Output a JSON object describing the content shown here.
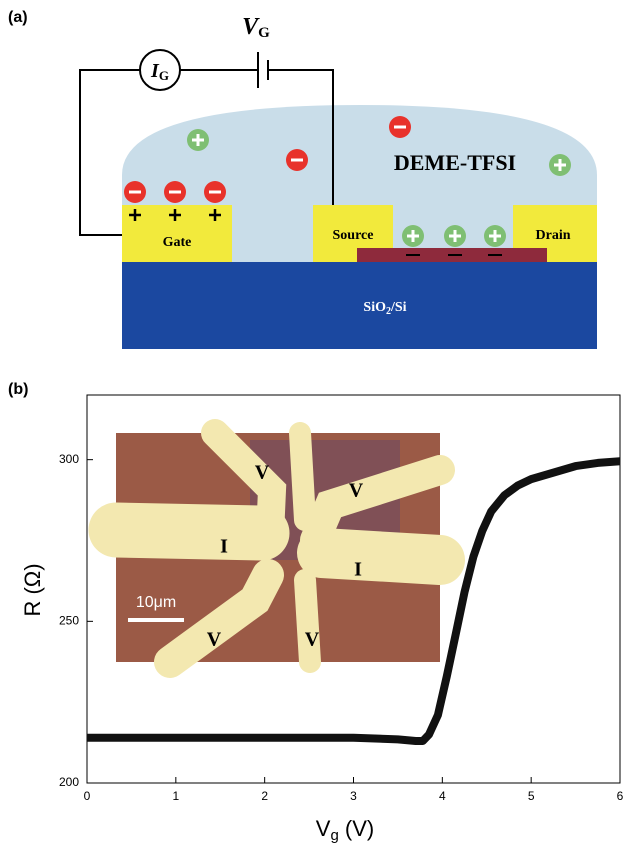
{
  "panel_labels": [
    "(a)",
    "(b)"
  ],
  "diagram": {
    "gate_voltage": {
      "symbol": "V",
      "sub": "G"
    },
    "gate_current": {
      "symbol": "I",
      "sub": "G"
    },
    "electrolyte": "DEME-TFSI",
    "gate": "Gate",
    "source": "Source",
    "drain": "Drain",
    "substrate": {
      "main": "SiO",
      "sub": "2",
      "rest": "/Si"
    }
  },
  "inset": {
    "labels": [
      "V",
      "V",
      "I",
      "I",
      "V",
      "V"
    ],
    "scale_bar": "10μm"
  },
  "chart_data": {
    "type": "line",
    "x_label": {
      "main": "V",
      "sub": "g",
      "rest": " (V)"
    },
    "y_label": "R (Ω)",
    "x": [
      0,
      0.5,
      1,
      1.5,
      2,
      2.5,
      3,
      3.5,
      3.7,
      3.78,
      3.85,
      3.95,
      4.05,
      4.15,
      4.25,
      4.35,
      4.45,
      4.55,
      4.7,
      4.85,
      5.0,
      5.25,
      5.5,
      5.75,
      6.0
    ],
    "series": [
      {
        "color": "#111111",
        "values": [
          214,
          214,
          214,
          214,
          214,
          214,
          214,
          213.5,
          213,
          213,
          215,
          221,
          233,
          246,
          259,
          270,
          278,
          284,
          289,
          292,
          294,
          296,
          298,
          299,
          299.5
        ]
      }
    ],
    "xlim": [
      0,
      6
    ],
    "ylim": [
      200,
      320
    ],
    "xticks": [
      0,
      1,
      2,
      3,
      4,
      5,
      6
    ],
    "yticks": [
      200,
      250,
      300
    ]
  }
}
